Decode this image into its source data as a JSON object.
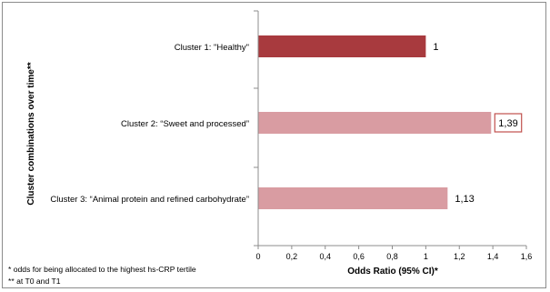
{
  "chart_data": {
    "type": "bar",
    "orientation": "horizontal",
    "categories": [
      "Cluster 1: \"Healthy\"",
      "Cluster 2: “Sweet and processed”",
      "Cluster 3: “Animal protein and refined carbohydrate”"
    ],
    "values": [
      1,
      1.39,
      1.13
    ],
    "value_labels": [
      "1",
      "1,39",
      "1,13"
    ],
    "highlighted_index": 1,
    "colors": [
      "#a83a3e",
      "#d99ca2",
      "#d99ca2"
    ],
    "highlight_border_color": "#c0504d",
    "xlabel": "Odds Ratio (95% CI)*",
    "ylabel": "Cluster combinations over time**",
    "xlim": [
      0,
      1.6
    ],
    "x_ticks": [
      0,
      0.2,
      0.4,
      0.6,
      0.8,
      1,
      1.2,
      1.4,
      1.6
    ],
    "x_tick_labels": [
      "0",
      "0,2",
      "0,4",
      "0,6",
      "0,8",
      "1",
      "1,2",
      "1,4",
      "1,6"
    ],
    "grid": false,
    "footnotes": [
      "* odds for being allocated to the highest hs-CRP tertile",
      "** at T0 and T1"
    ]
  }
}
